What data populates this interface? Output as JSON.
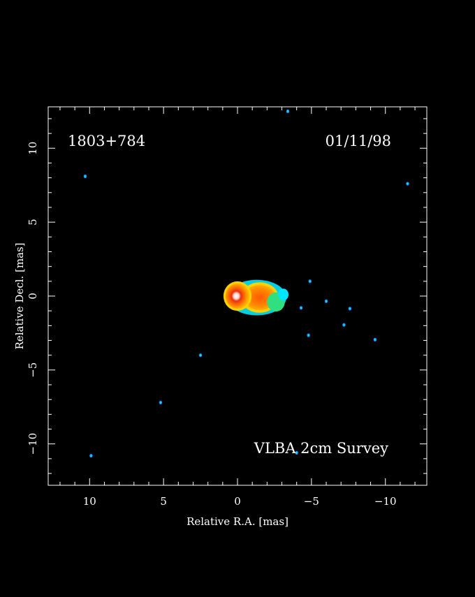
{
  "chart_data": {
    "type": "heatmap",
    "title": "",
    "source_label": "1803+784",
    "date_label": "01/11/98",
    "survey_label": "VLBA 2cm Survey",
    "xlabel": "Relative R.A. [mas]",
    "ylabel": "Relative Decl. [mas]",
    "xlim": [
      12.8,
      -12.8
    ],
    "ylim": [
      -12.8,
      12.8
    ],
    "x_ticks": [
      {
        "value": 10,
        "label": "10"
      },
      {
        "value": 5,
        "label": "5"
      },
      {
        "value": 0,
        "label": "0"
      },
      {
        "value": -5,
        "label": "−5"
      },
      {
        "value": -10,
        "label": "−10"
      }
    ],
    "y_ticks": [
      {
        "value": 10,
        "label": "10"
      },
      {
        "value": 5,
        "label": "5"
      },
      {
        "value": 0,
        "label": "0"
      },
      {
        "value": -5,
        "label": "−5"
      },
      {
        "value": -10,
        "label": "−10"
      }
    ],
    "minor_tick_step": 1,
    "colors": {
      "background": "#000000",
      "axes": "#ffffff",
      "low": "#1e90ff",
      "cyan": "#00e5ff",
      "green": "#30e080",
      "orange": "#ff8a00",
      "red": "#e83010",
      "peak": "#ffffff"
    },
    "core": {
      "ra": 0.0,
      "dec": 0.0,
      "peak": "white"
    },
    "emission_blobs": [
      {
        "ra": -1.5,
        "dec": -0.1,
        "rx": 1.1,
        "ry": 0.85,
        "level": "orange"
      },
      {
        "ra": -2.6,
        "dec": -0.4,
        "rx": 0.6,
        "ry": 0.65,
        "level": "green"
      },
      {
        "ra": -3.1,
        "dec": 0.1,
        "rx": 0.35,
        "ry": 0.4,
        "level": "cyan"
      }
    ],
    "noise_spots": [
      {
        "ra": 10.3,
        "dec": 8.1
      },
      {
        "ra": -3.4,
        "dec": 12.5
      },
      {
        "ra": -11.5,
        "dec": 7.6
      },
      {
        "ra": -4.9,
        "dec": 1.0
      },
      {
        "ra": -4.3,
        "dec": -0.8
      },
      {
        "ra": -6.0,
        "dec": -0.35
      },
      {
        "ra": -7.6,
        "dec": -0.85
      },
      {
        "ra": -7.2,
        "dec": -1.95
      },
      {
        "ra": -4.8,
        "dec": -2.65
      },
      {
        "ra": -9.3,
        "dec": -2.95
      },
      {
        "ra": 2.5,
        "dec": -4.0
      },
      {
        "ra": 5.2,
        "dec": -7.2
      },
      {
        "ra": 9.9,
        "dec": -10.8
      },
      {
        "ra": -4.0,
        "dec": -10.6
      }
    ]
  }
}
